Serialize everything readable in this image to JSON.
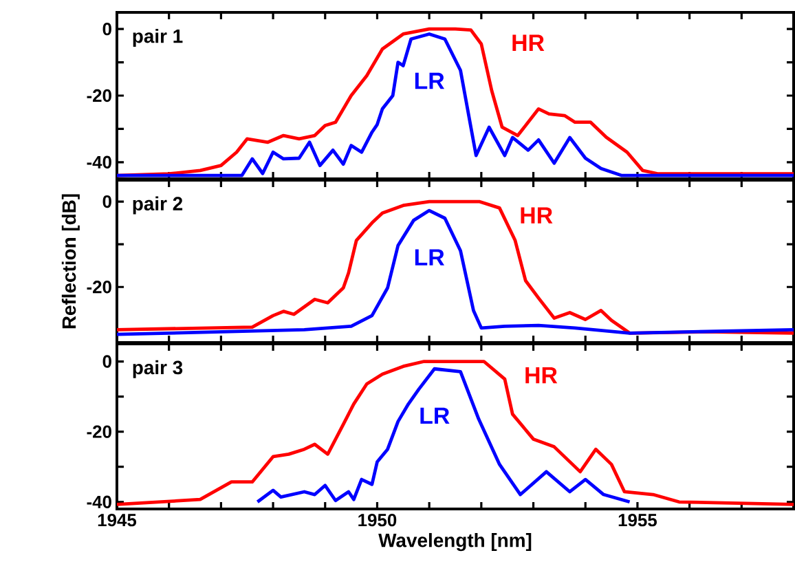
{
  "chart_data": [
    {
      "type": "line",
      "title": "pair 1",
      "tick_labels": "y",
      "xlim": [
        1945,
        1958
      ],
      "ylim": [
        -45,
        5
      ],
      "xticks": [
        {
          "value": 1945,
          "label": null
        },
        {
          "value": 1946,
          "label": null
        },
        {
          "value": 1947,
          "label": null
        },
        {
          "value": 1948,
          "label": null
        },
        {
          "value": 1949,
          "label": null
        },
        {
          "value": 1950,
          "label": null
        },
        {
          "value": 1951,
          "label": null
        },
        {
          "value": 1952,
          "label": null
        },
        {
          "value": 1953,
          "label": null
        },
        {
          "value": 1954,
          "label": null
        },
        {
          "value": 1955,
          "label": null
        },
        {
          "value": 1956,
          "label": null
        },
        {
          "value": 1957,
          "label": null
        }
      ],
      "yticks": [
        -40,
        -20,
        0
      ],
      "series": [
        {
          "name": "HR",
          "color": "#ff0000",
          "x": [
            1945,
            1946,
            1946.6,
            1947,
            1947.3,
            1947.5,
            1947.9,
            1948.2,
            1948.5,
            1948.8,
            1949,
            1949.2,
            1949.5,
            1949.8,
            1950.1,
            1950.5,
            1951,
            1951.5,
            1951.8,
            1952,
            1952.2,
            1952.4,
            1952.7,
            1953.1,
            1953.3,
            1953.6,
            1953.8,
            1954.1,
            1954.4,
            1954.8,
            1955.1,
            1955.4,
            1956,
            1957,
            1958
          ],
          "values": [
            -44,
            -43.5,
            -42.5,
            -41,
            -37,
            -33,
            -34,
            -32,
            -33,
            -32,
            -29,
            -28,
            -20,
            -14,
            -6,
            -1.5,
            0,
            0,
            -0.3,
            -4.5,
            -18.5,
            -29.5,
            -32,
            -24,
            -25.5,
            -26,
            -28,
            -28,
            -32.5,
            -37,
            -42.5,
            -43.5,
            -43.5,
            -43.5,
            -43.5
          ]
        },
        {
          "name": "LR",
          "color": "#0000ff",
          "x": [
            1945,
            1947.4,
            1947.6,
            1947.8,
            1948,
            1948.2,
            1948.5,
            1948.7,
            1948.9,
            1949.15,
            1949.35,
            1949.5,
            1949.7,
            1949.9,
            1950,
            1950.1,
            1950.3,
            1950.4,
            1950.5,
            1950.65,
            1951,
            1951.3,
            1951.6,
            1951.8,
            1951.9,
            1952.15,
            1952.45,
            1952.6,
            1952.9,
            1953.1,
            1953.4,
            1953.7,
            1954,
            1954.3,
            1954.7,
            1958
          ],
          "values": [
            -44,
            -44,
            -39,
            -43.4,
            -37,
            -39,
            -38.8,
            -34,
            -41,
            -36.4,
            -40.6,
            -35,
            -37,
            -31,
            -28.7,
            -24,
            -20,
            -10,
            -11,
            -3,
            -1.5,
            -3,
            -12.4,
            -29.5,
            -38,
            -29.5,
            -38,
            -32.6,
            -36.4,
            -33.3,
            -40.3,
            -32.6,
            -38.8,
            -41.9,
            -44,
            -44
          ]
        }
      ]
    },
    {
      "type": "line",
      "title": "pair 2",
      "ylabel": "Reflection [dB]",
      "tick_labels": "y",
      "xlim": [
        1945,
        1958
      ],
      "ylim": [
        -33,
        5
      ],
      "xticks": [
        {
          "value": 1945,
          "label": null
        },
        {
          "value": 1946,
          "label": null
        },
        {
          "value": 1947,
          "label": null
        },
        {
          "value": 1948,
          "label": null
        },
        {
          "value": 1949,
          "label": null
        },
        {
          "value": 1950,
          "label": null
        },
        {
          "value": 1951,
          "label": null
        },
        {
          "value": 1952,
          "label": null
        },
        {
          "value": 1953,
          "label": null
        },
        {
          "value": 1954,
          "label": null
        },
        {
          "value": 1955,
          "label": null
        },
        {
          "value": 1956,
          "label": null
        },
        {
          "value": 1957,
          "label": null
        }
      ],
      "yticks": [
        -20,
        0
      ],
      "series": [
        {
          "name": "HR",
          "color": "#ff0000",
          "x": [
            1945,
            1947.6,
            1948,
            1948.2,
            1948.4,
            1948.8,
            1949.05,
            1949.35,
            1949.45,
            1949.6,
            1949.9,
            1950.1,
            1950.5,
            1951,
            1951.96,
            1952.35,
            1952.65,
            1952.85,
            1953.1,
            1953.4,
            1953.7,
            1954,
            1954.3,
            1954.5,
            1954.85,
            1956.3,
            1958
          ],
          "values": [
            -30,
            -29.4,
            -26.7,
            -25.7,
            -26.4,
            -22.9,
            -23.7,
            -20.2,
            -16.7,
            -9.1,
            -5,
            -2.7,
            -0.9,
            0,
            0,
            -1.5,
            -9.1,
            -18.5,
            -22.6,
            -27.3,
            -26,
            -27.6,
            -25.5,
            -27.8,
            -30.8,
            -30.5,
            -30.8
          ]
        },
        {
          "name": "LR",
          "color": "#0000ff",
          "x": [
            1945,
            1948.6,
            1949.5,
            1949.9,
            1950.2,
            1950.4,
            1950.7,
            1951,
            1951.3,
            1951.6,
            1951.85,
            1952,
            1952.45,
            1953.1,
            1953.8,
            1954.85,
            1958
          ],
          "values": [
            -31.1,
            -30,
            -29.2,
            -26.7,
            -20.2,
            -10.3,
            -4.4,
            -2.1,
            -3.9,
            -11.5,
            -25.5,
            -29.6,
            -29.2,
            -29,
            -29.6,
            -30.8,
            -30
          ]
        }
      ]
    },
    {
      "type": "line",
      "title": "pair 3",
      "xlabel": "Wavelength [nm]",
      "xlim": [
        1945,
        1958
      ],
      "ylim": [
        -42,
        5
      ],
      "xticks": [
        1945,
        {
          "value": 1946,
          "label": null
        },
        {
          "value": 1947,
          "label": null
        },
        {
          "value": 1948,
          "label": null
        },
        {
          "value": 1949,
          "label": null
        },
        1950,
        {
          "value": 1951,
          "label": null
        },
        {
          "value": 1952,
          "label": null
        },
        {
          "value": 1953,
          "label": null
        },
        {
          "value": 1954,
          "label": null
        },
        1955,
        {
          "value": 1956,
          "label": null
        },
        {
          "value": 1957,
          "label": null
        }
      ],
      "yticks": [
        -40,
        -20,
        0
      ],
      "series": [
        {
          "name": "HR",
          "color": "#ff0000",
          "x": [
            1945,
            1946.6,
            1947.2,
            1947.6,
            1948,
            1948.3,
            1948.6,
            1948.8,
            1949.05,
            1949.35,
            1949.55,
            1949.8,
            1950.1,
            1950.5,
            1950.9,
            1952.05,
            1952.45,
            1952.6,
            1953,
            1953.4,
            1953.9,
            1954.2,
            1954.5,
            1954.75,
            1955.3,
            1955.8,
            1958
          ],
          "values": [
            -40.7,
            -39.3,
            -34.3,
            -34.3,
            -27.1,
            -26.4,
            -25,
            -23.6,
            -26.4,
            -17.9,
            -12.1,
            -6.4,
            -3.6,
            -1.4,
            0,
            0,
            -5,
            -15,
            -22.1,
            -24.3,
            -31.4,
            -25,
            -29.3,
            -37.1,
            -37.9,
            -40,
            -40.7
          ]
        },
        {
          "name": "LR",
          "color": "#0000ff",
          "x": [
            1947.7,
            1948,
            1948.15,
            1948.6,
            1948.8,
            1949,
            1949.2,
            1949.45,
            1949.55,
            1949.7,
            1949.9,
            1950,
            1950.2,
            1950.4,
            1950.6,
            1950.8,
            1951.1,
            1951.6,
            1951.95,
            1952.35,
            1952.75,
            1953.25,
            1953.7,
            1954,
            1954.35,
            1954.85
          ],
          "values": [
            -40,
            -36.7,
            -38.6,
            -37.1,
            -37.9,
            -35.3,
            -39.6,
            -37.1,
            -39.3,
            -33.6,
            -35,
            -28.6,
            -25,
            -17.1,
            -12.1,
            -7.9,
            -2.1,
            -2.9,
            -16.4,
            -29.3,
            -37.9,
            -31.4,
            -37.1,
            -33.6,
            -37.9,
            -40
          ]
        }
      ]
    }
  ]
}
